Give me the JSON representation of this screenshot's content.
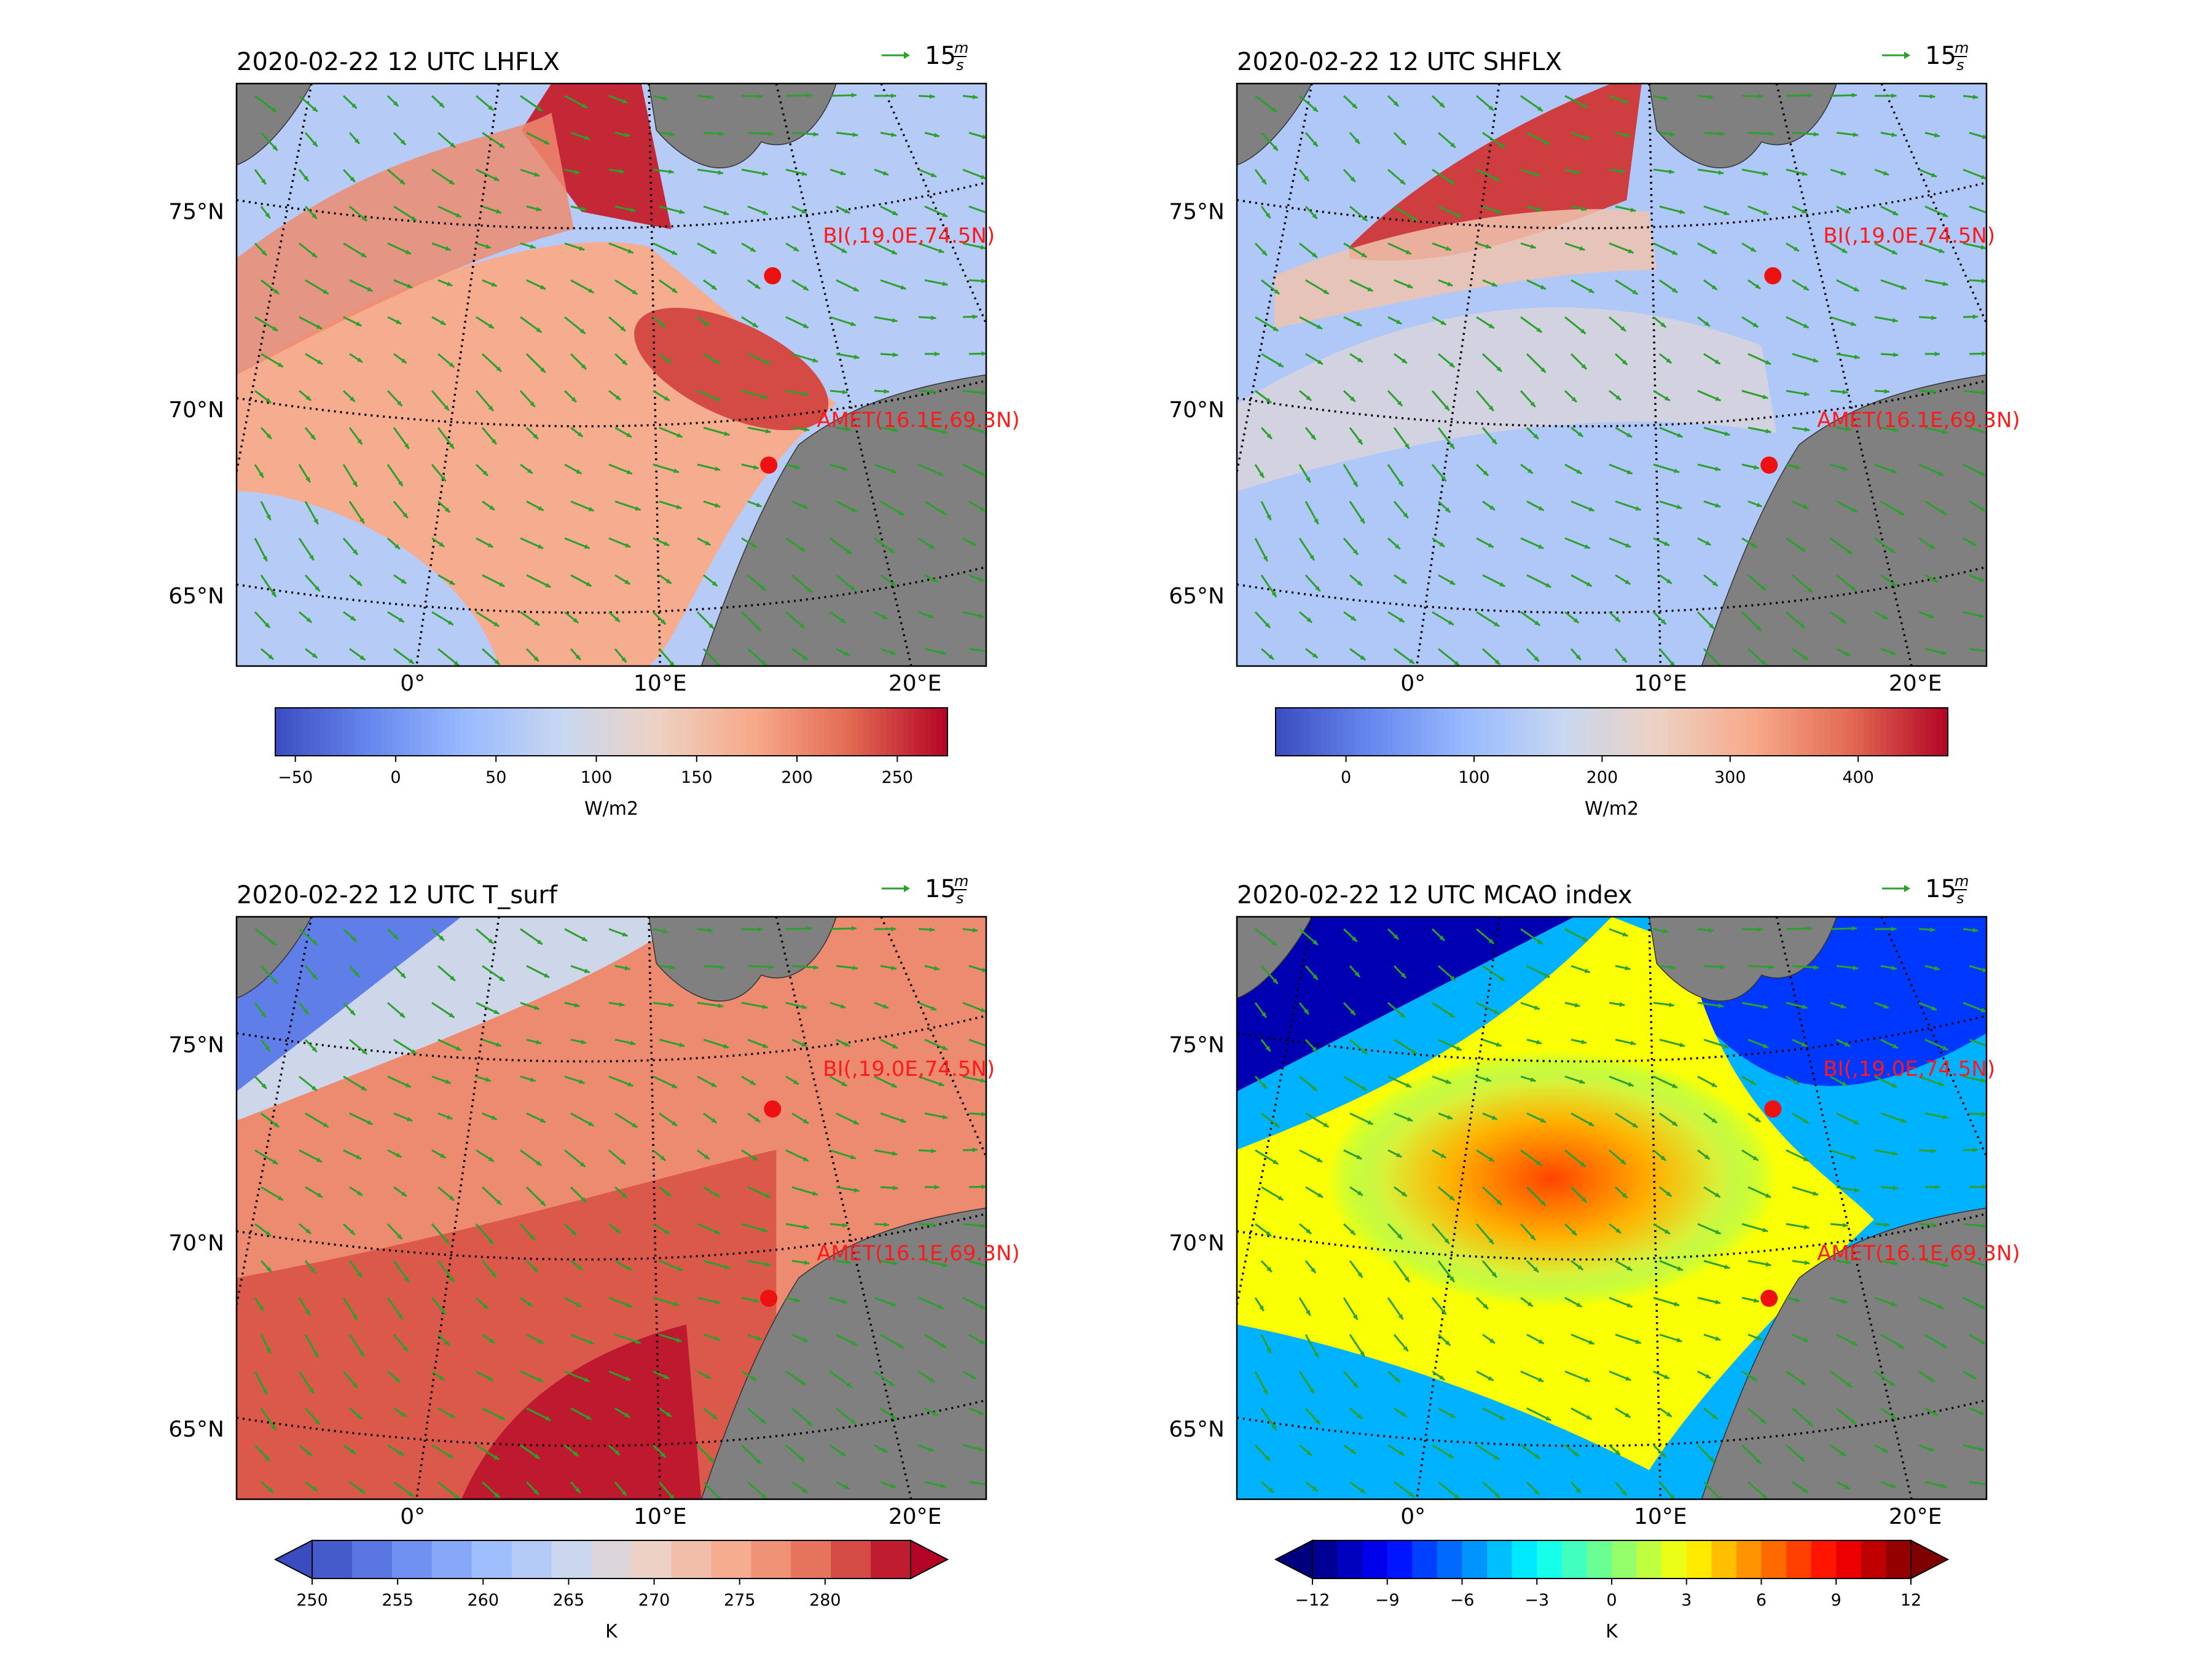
{
  "figure": {
    "quiver_key": {
      "value": "15",
      "unit_top": "m",
      "unit_bottom": "s",
      "color": "#2ca02c"
    },
    "stations": [
      {
        "label": "BI(,19.0E,74.5N)"
      },
      {
        "label": "AMET(16.1E,69.3N)"
      }
    ],
    "lat_labels": [
      "75°N",
      "70°N",
      "65°N"
    ],
    "lon_labels": [
      "0°",
      "10°E",
      "20°E"
    ]
  },
  "chart_data": [
    {
      "type": "heatmap",
      "variable": "LHFLX",
      "title": "2020-02-22 12 UTC LHFLX",
      "colormap": "coolwarm",
      "colorbar": {
        "label": "W/m2",
        "ticks": [
          "−50",
          "0",
          "50",
          "100",
          "150",
          "200",
          "250"
        ],
        "range": [
          -60,
          275
        ],
        "extend": "neither",
        "discrete": false
      },
      "value_range": [
        -60,
        275
      ]
    },
    {
      "type": "heatmap",
      "variable": "SHFLX",
      "title": "2020-02-22 12 UTC SHFLX",
      "colormap": "coolwarm",
      "colorbar": {
        "label": "W/m2",
        "ticks": [
          "0",
          "100",
          "200",
          "300",
          "400"
        ],
        "range": [
          -55,
          470
        ],
        "extend": "neither",
        "discrete": false
      },
      "value_range": [
        -55,
        470
      ]
    },
    {
      "type": "heatmap",
      "variable": "T_surf",
      "title": "2020-02-22 12 UTC T_surf",
      "colormap": "coolwarm",
      "colorbar": {
        "label": "K",
        "ticks": [
          "250",
          "255",
          "260",
          "265",
          "270",
          "275",
          "280"
        ],
        "range": [
          250,
          285
        ],
        "extend": "both",
        "discrete": true,
        "levels": 15
      },
      "value_range": [
        250,
        285
      ]
    },
    {
      "type": "heatmap",
      "variable": "MCAO index",
      "title": "2020-02-22 12 UTC MCAO index",
      "colormap": "jet",
      "colorbar": {
        "label": "K",
        "ticks": [
          "−12",
          "−9",
          "−6",
          "−3",
          "0",
          "3",
          "6",
          "9",
          "12"
        ],
        "range": [
          -12,
          12
        ],
        "extend": "both",
        "discrete": true,
        "levels": 24
      },
      "value_range": [
        -12,
        12
      ]
    }
  ]
}
